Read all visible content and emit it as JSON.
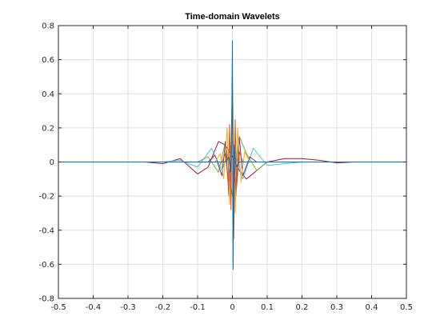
{
  "chart_data": {
    "type": "line",
    "title": "Time-domain Wavelets",
    "xlabel": "",
    "ylabel": "",
    "xlim": [
      -0.5,
      0.5
    ],
    "ylim": [
      -0.8,
      0.8
    ],
    "grid": true,
    "xticks": [
      -0.5,
      -0.4,
      -0.3,
      -0.2,
      -0.1,
      0,
      0.1,
      0.2,
      0.3,
      0.4,
      0.5
    ],
    "xtick_labels": [
      "-0.5",
      "-0.4",
      "-0.3",
      "-0.2",
      "-0.1",
      "0",
      "0.1",
      "0.2",
      "0.3",
      "0.4",
      "0.5"
    ],
    "yticks": [
      -0.8,
      -0.6,
      -0.4,
      -0.2,
      0,
      0.2,
      0.4,
      0.6,
      0.8
    ],
    "ytick_labels": [
      "-0.8",
      "-0.6",
      "-0.4",
      "-0.2",
      "0",
      "0.2",
      "0.4",
      "0.6",
      "0.8"
    ],
    "series": [
      {
        "color": "#0072bd",
        "x": [
          -0.5,
          -0.02,
          -0.01,
          -0.005,
          -0.002,
          0,
          0.002,
          0.005,
          0.01,
          0.02,
          0.5
        ],
        "y": [
          0,
          0,
          0.03,
          -0.06,
          0.2,
          0.71,
          -0.63,
          0.1,
          -0.03,
          0,
          0
        ]
      },
      {
        "color": "#d95319",
        "x": [
          -0.5,
          -0.03,
          -0.02,
          -0.012,
          -0.008,
          -0.004,
          0,
          0.004,
          0.008,
          0.012,
          0.02,
          0.03,
          0.5
        ],
        "y": [
          0,
          0,
          0.05,
          -0.12,
          0.22,
          -0.28,
          0.52,
          -0.45,
          0.25,
          -0.15,
          0.06,
          0,
          0
        ]
      },
      {
        "color": "#edb120",
        "x": [
          -0.5,
          -0.05,
          -0.035,
          -0.025,
          -0.015,
          -0.008,
          0,
          0.008,
          0.015,
          0.025,
          0.035,
          0.05,
          0.5
        ],
        "y": [
          0,
          0,
          0.05,
          -0.1,
          0.2,
          -0.25,
          0.45,
          -0.3,
          0.2,
          -0.12,
          0.06,
          0,
          0
        ]
      },
      {
        "color": "#7e2f8e",
        "x": [
          -0.5,
          -0.07,
          -0.05,
          -0.03,
          -0.02,
          -0.01,
          0,
          0.01,
          0.02,
          0.03,
          0.05,
          0.07,
          0.5
        ],
        "y": [
          0,
          0,
          0.04,
          -0.08,
          0.12,
          -0.2,
          0.3,
          -0.2,
          0.14,
          -0.08,
          0.03,
          0,
          0
        ]
      },
      {
        "color": "#77ac30",
        "x": [
          -0.5,
          -0.1,
          -0.07,
          -0.04,
          -0.02,
          0,
          0.02,
          0.04,
          0.07,
          0.1,
          0.5
        ],
        "y": [
          0,
          0,
          0.03,
          -0.06,
          0.12,
          -0.2,
          0.15,
          0.05,
          -0.05,
          0,
          0
        ]
      },
      {
        "color": "#4dbeee",
        "x": [
          -0.5,
          -0.2,
          -0.15,
          -0.1,
          -0.06,
          -0.03,
          0,
          0.03,
          0.06,
          0.1,
          0.15,
          0.2,
          0.5
        ],
        "y": [
          0,
          0,
          0.01,
          -0.03,
          0.08,
          -0.05,
          0.12,
          -0.1,
          0.08,
          -0.02,
          -0.01,
          0,
          0
        ]
      },
      {
        "color": "#a2142f",
        "x": [
          -0.5,
          -0.25,
          -0.2,
          -0.15,
          -0.1,
          -0.07,
          -0.04,
          -0.02,
          0,
          0.02,
          0.04,
          0.07,
          0.1,
          0.15,
          0.2,
          0.25,
          0.3,
          0.35,
          0.5
        ],
        "y": [
          0,
          0,
          -0.01,
          0.02,
          -0.07,
          -0.03,
          0.12,
          0.1,
          0.03,
          -0.05,
          -0.1,
          -0.05,
          0,
          0.02,
          0.02,
          0.01,
          -0.005,
          0,
          0
        ]
      }
    ]
  }
}
